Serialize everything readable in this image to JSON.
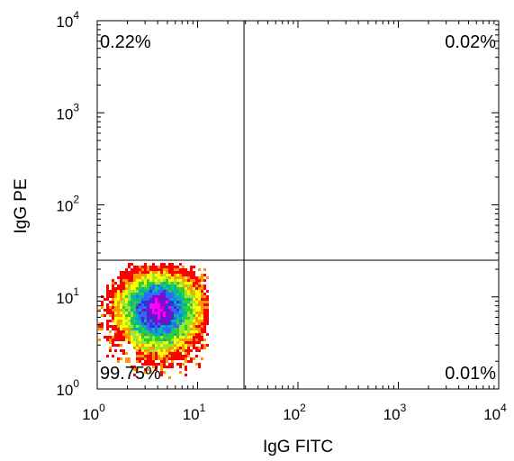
{
  "chart_data": {
    "type": "density-scatter",
    "title": "",
    "xlabel": "IgG FITC",
    "ylabel": "IgG PE",
    "x_scale": "log",
    "y_scale": "log",
    "xlim": [
      1,
      10000
    ],
    "ylim": [
      1,
      10000
    ],
    "x_ticks": [
      {
        "base": "10",
        "exp": "0",
        "value": 1
      },
      {
        "base": "10",
        "exp": "1",
        "value": 10
      },
      {
        "base": "10",
        "exp": "2",
        "value": 100
      },
      {
        "base": "10",
        "exp": "3",
        "value": 1000
      },
      {
        "base": "10",
        "exp": "4",
        "value": 10000
      }
    ],
    "y_ticks": [
      {
        "base": "10",
        "exp": "0",
        "value": 1
      },
      {
        "base": "10",
        "exp": "1",
        "value": 10
      },
      {
        "base": "10",
        "exp": "2",
        "value": 100
      },
      {
        "base": "10",
        "exp": "3",
        "value": 1000
      },
      {
        "base": "10",
        "exp": "4",
        "value": 10000
      }
    ],
    "quadrant_gate": {
      "x": 29,
      "y": 25
    },
    "quadrants": [
      {
        "id": "upper-left",
        "label": "0.22%"
      },
      {
        "id": "upper-right",
        "label": "0.02%"
      },
      {
        "id": "lower-left",
        "label": "99.75%"
      },
      {
        "id": "lower-right",
        "label": "0.01%"
      }
    ],
    "population": {
      "center_x": 4,
      "center_y": 8
    },
    "density_colors": [
      "#ff0000",
      "#ff9900",
      "#ffff00",
      "#99e633",
      "#33cc33",
      "#00b3b3",
      "#3366ff",
      "#3333cc",
      "#9900cc",
      "#ff00ff"
    ],
    "grid": false,
    "legend": "none"
  }
}
